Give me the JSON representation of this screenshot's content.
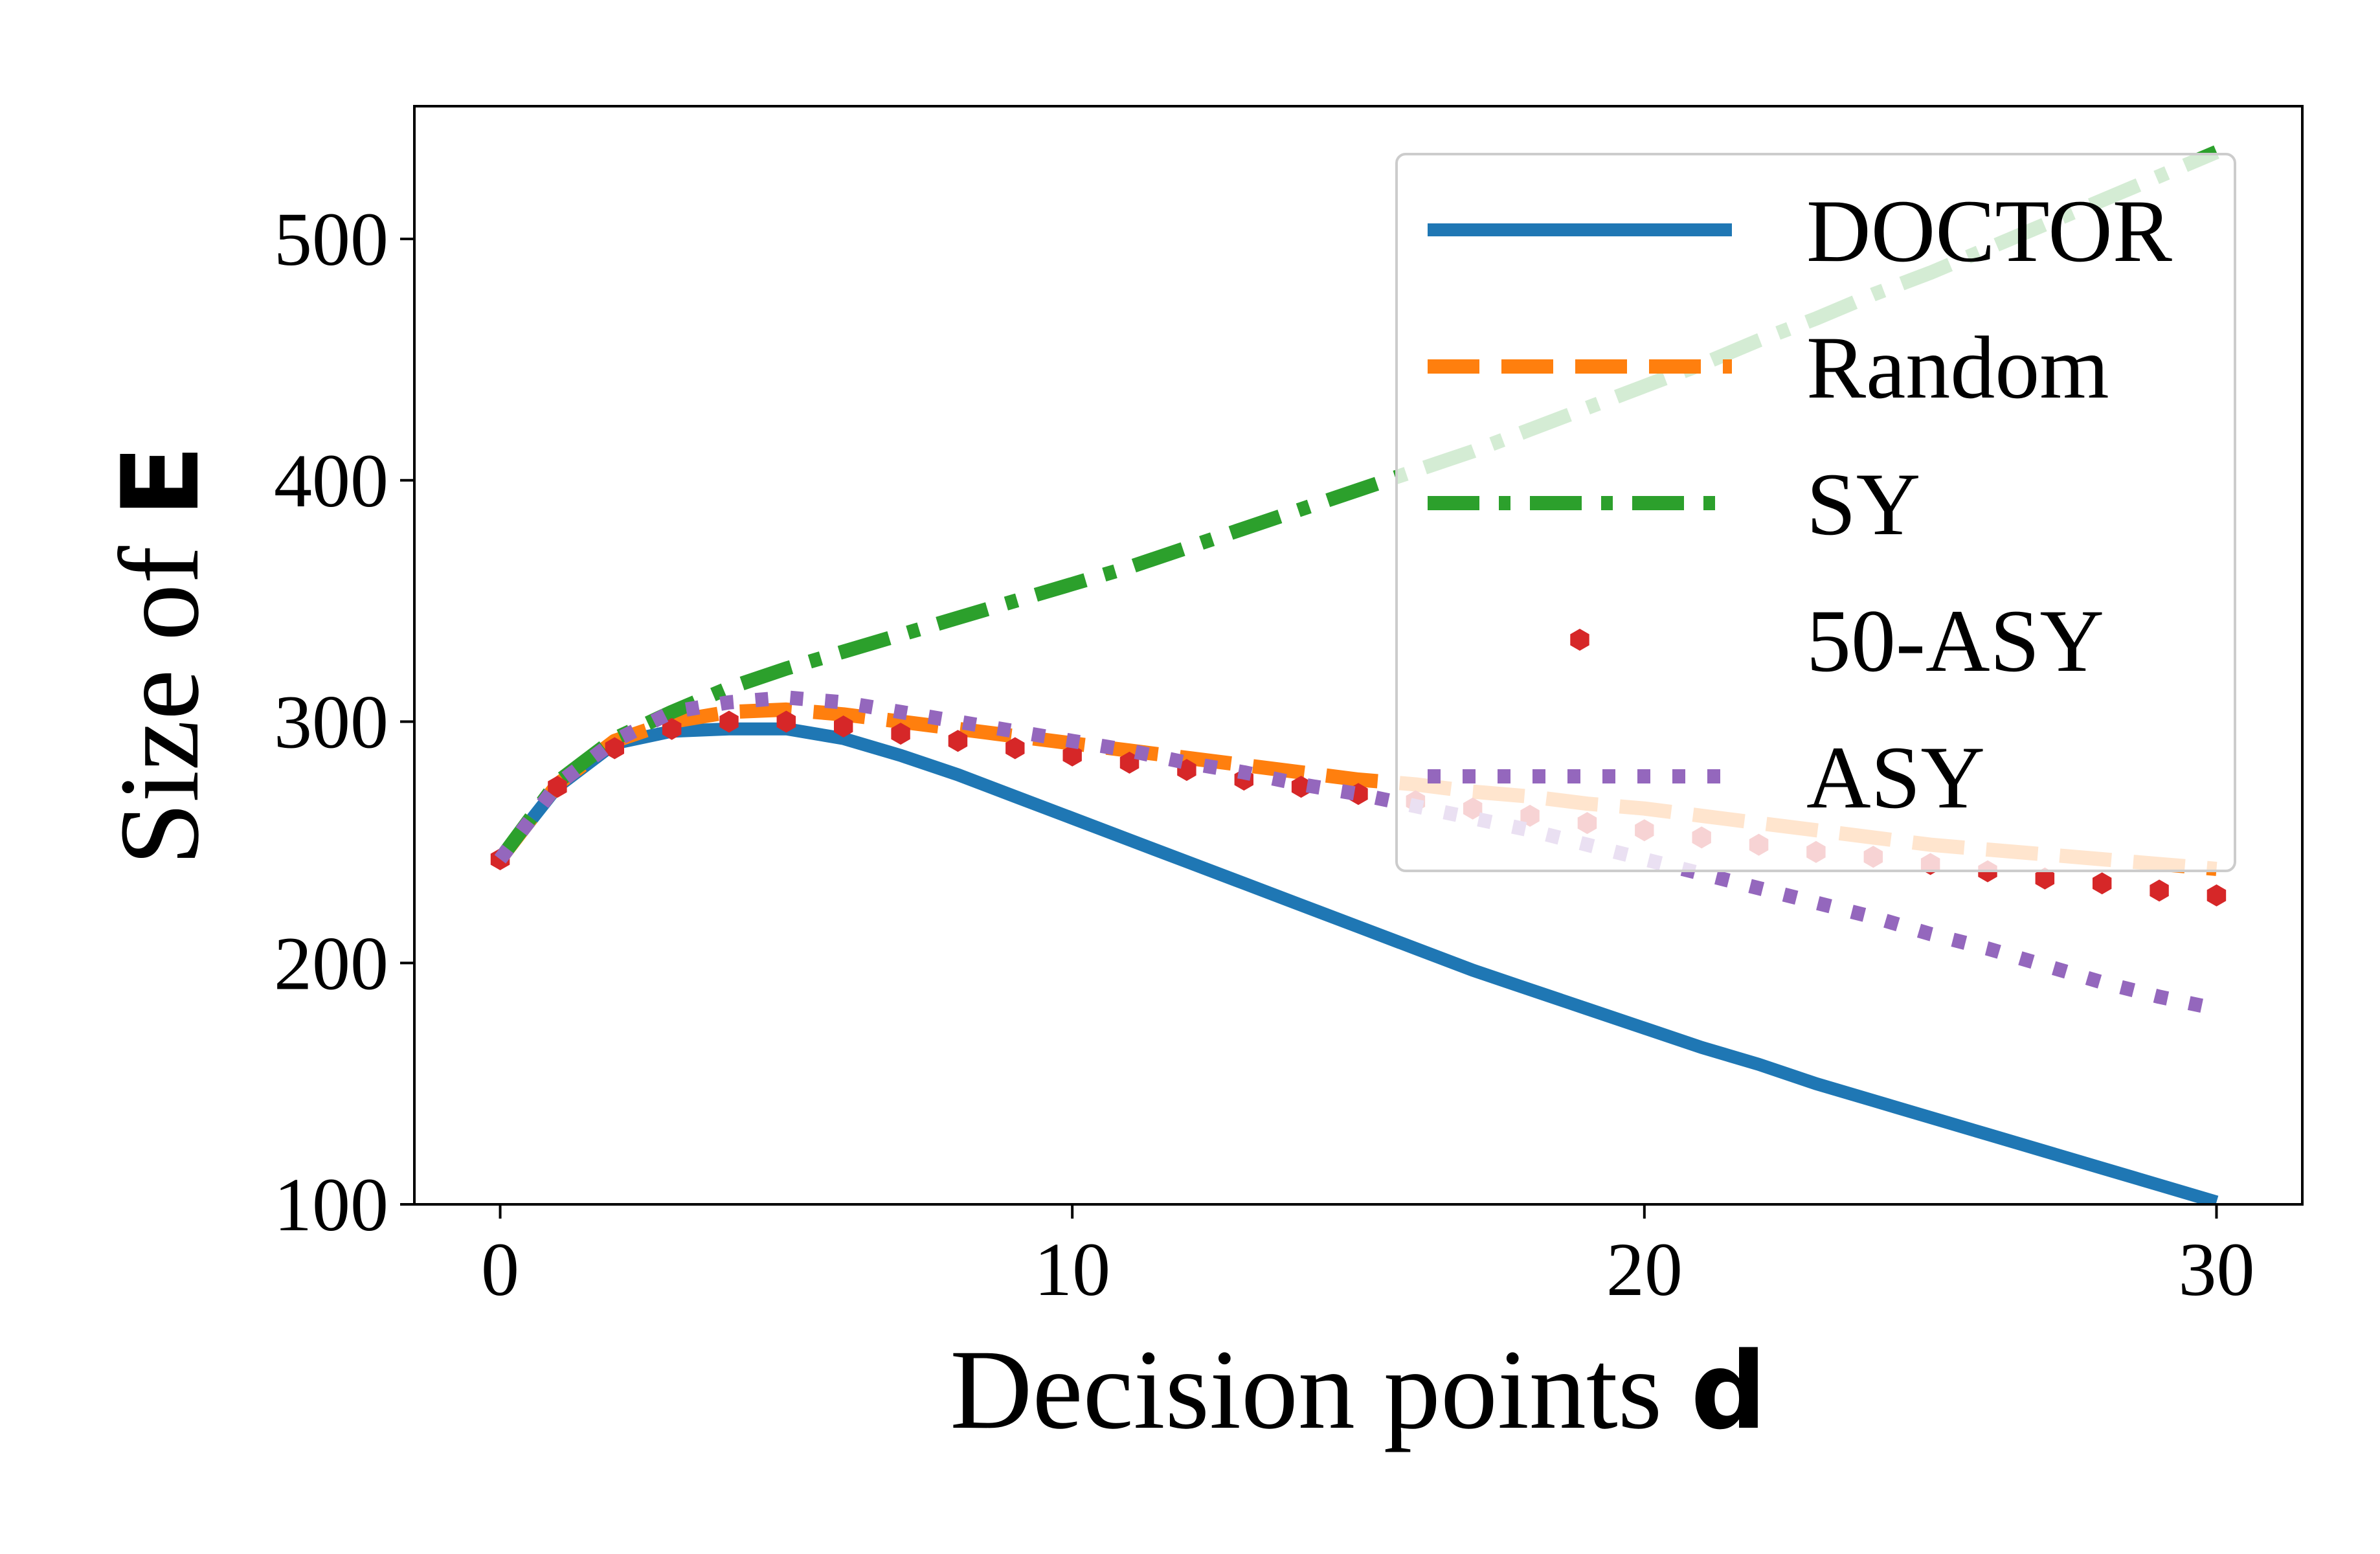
{
  "chart_data": {
    "type": "line",
    "xlabel": "Decision points",
    "xlabel_symbol": "d",
    "ylabel": "Size of",
    "ylabel_symbol": "E",
    "xlim": [
      -1.5,
      31.5
    ],
    "ylim": [
      100,
      555
    ],
    "xticks": [
      0,
      10,
      20,
      30
    ],
    "yticks": [
      100,
      200,
      300,
      400,
      500
    ],
    "grid": false,
    "legend_position": "top-right",
    "x": [
      0,
      1,
      2,
      3,
      4,
      5,
      6,
      7,
      8,
      9,
      10,
      11,
      12,
      13,
      14,
      15,
      16,
      17,
      18,
      19,
      20,
      21,
      22,
      23,
      24,
      25,
      26,
      27,
      28,
      29,
      30
    ],
    "series": [
      {
        "name": "DOCTOR",
        "color": "#1f77b4",
        "style": "solid",
        "values": [
          243,
          273,
          291,
          296,
          297,
          297,
          293,
          286,
          278,
          269,
          260,
          251,
          242,
          233,
          224,
          215,
          206,
          197,
          189,
          181,
          173,
          165,
          158,
          150,
          143,
          136,
          129,
          122,
          115,
          108,
          101
        ]
      },
      {
        "name": "Random",
        "color": "#ff7f0e",
        "style": "dashed",
        "values": [
          243,
          274,
          292,
          300,
          304,
          305,
          303,
          300,
          297,
          294,
          291,
          288,
          285,
          282,
          279,
          276,
          274,
          271,
          269,
          266,
          264,
          261,
          258,
          255,
          252,
          249,
          247,
          245,
          243,
          241,
          239
        ]
      },
      {
        "name": "SY",
        "color": "#2ca02c",
        "style": "dashdot",
        "values": [
          243,
          275,
          293,
          304,
          314,
          322,
          329,
          336,
          343,
          350,
          357,
          364,
          372,
          380,
          388,
          396,
          404,
          412,
          421,
          430,
          439,
          448,
          458,
          467,
          477,
          486,
          496,
          506,
          516,
          526,
          536
        ]
      },
      {
        "name": "50-ASY",
        "color": "#d62728",
        "style": "markers",
        "values": [
          243,
          273,
          289,
          297,
          300,
          300,
          298,
          295,
          292,
          289,
          286,
          283,
          280,
          276,
          273,
          270,
          267,
          264,
          261,
          258,
          255,
          252,
          249,
          246,
          244,
          241,
          238,
          235,
          233,
          230,
          228
        ]
      },
      {
        "name": "ASY",
        "color": "#9467bd",
        "style": "dotted",
        "values": [
          243,
          274,
          292,
          304,
          308,
          310,
          308,
          304,
          300,
          296,
          292,
          288,
          283,
          279,
          274,
          270,
          265,
          260,
          255,
          249,
          243,
          237,
          231,
          225,
          219,
          212,
          206,
          199,
          192,
          186,
          181
        ]
      }
    ]
  }
}
